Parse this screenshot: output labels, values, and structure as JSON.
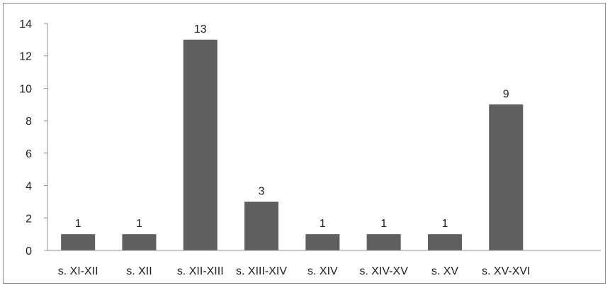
{
  "chart_data": {
    "type": "bar",
    "title": "",
    "xlabel": "",
    "ylabel": "",
    "categories": [
      "s. XI-XII",
      "s. XII",
      "s. XII-XIII",
      "s. XIII-XIV",
      "s. XIV",
      "s. XIV-XV",
      "s. XV",
      "s. XV-XVI"
    ],
    "values": [
      1,
      1,
      13,
      3,
      1,
      1,
      1,
      9
    ],
    "data_labels": [
      "1",
      "1",
      "13",
      "3",
      "1",
      "1",
      "1",
      "9"
    ],
    "y_ticks": [
      0,
      2,
      4,
      6,
      8,
      10,
      12,
      14
    ],
    "y_tick_labels": [
      "0",
      "2",
      "4",
      "6",
      "8",
      "10",
      "12",
      "14"
    ],
    "ylim": [
      0,
      14
    ],
    "grid": false,
    "legend": "none",
    "bar_color": "#5f5f5f",
    "axis_color": "#8c8c8c"
  }
}
